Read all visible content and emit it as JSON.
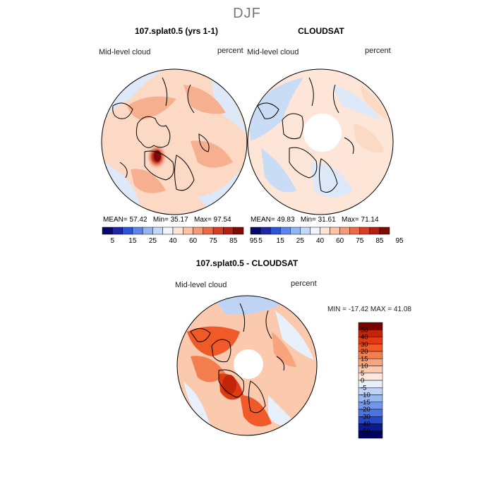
{
  "page": {
    "title": "DJF"
  },
  "colors": {
    "ocean_blue": "#c9dcf5",
    "light_blue": "#dde9f8",
    "light_orange": "#fbd9c4",
    "orange": "#f6b08f",
    "red": "#e2542e",
    "dark_red": "#b2182b",
    "coast": "#000000"
  },
  "chart_data": [
    {
      "type": "heatmap",
      "title": "107.splat0.5 (yrs 1-1)",
      "variable": "Mid-level cloud",
      "units": "percent",
      "stats": {
        "mean_label": "MEAN=",
        "mean": "57.42",
        "min_label": "Min=",
        "min": "35.17",
        "max_label": "Max=",
        "max": "97.54"
      },
      "colorbar": {
        "tick_labels": [
          "5",
          "15",
          "25",
          "40",
          "60",
          "75",
          "85",
          "95"
        ],
        "colors": [
          "#08086b",
          "#1f27a6",
          "#2f56d6",
          "#5e85ec",
          "#93b6f3",
          "#c4d9f8",
          "#eef3fc",
          "#fde6d7",
          "#fbc4a6",
          "#f69b77",
          "#ec6a48",
          "#d93e22",
          "#b31f10",
          "#800b06"
        ]
      }
    },
    {
      "type": "heatmap",
      "title": "CLOUDSAT",
      "variable": "Mid-level cloud",
      "units": "percent",
      "stats": {
        "mean_label": "MEAN=",
        "mean": "49.83",
        "min_label": "Min=",
        "min": "31.61",
        "max_label": "Max=",
        "max": "71.14"
      },
      "colorbar": {
        "tick_labels": [
          "5",
          "15",
          "25",
          "40",
          "60",
          "75",
          "85",
          "95"
        ],
        "colors": [
          "#08086b",
          "#1f27a6",
          "#2f56d6",
          "#5e85ec",
          "#93b6f3",
          "#c4d9f8",
          "#eef3fc",
          "#fde6d7",
          "#fbc4a6",
          "#f69b77",
          "#ec6a48",
          "#d93e22",
          "#b31f10",
          "#800b06"
        ]
      }
    },
    {
      "type": "heatmap",
      "title": "107.splat0.5 - CLOUDSAT",
      "variable": "Mid-level cloud",
      "units": "percent",
      "stats_line": "MIN = -17.42 MAX =  41.08",
      "colorbar": {
        "tick_labels": [
          "50",
          "40",
          "30",
          "20",
          "15",
          "10",
          "5",
          "0",
          "-5",
          "-10",
          "-15",
          "-20",
          "-30",
          "-40",
          "-50"
        ],
        "colors": [
          "#7a0000",
          "#c2250a",
          "#e03b14",
          "#ef5a28",
          "#f47f4e",
          "#f8a47c",
          "#fbc9ad",
          "#fde9de",
          "#e8f0fb",
          "#bfd4f5",
          "#98b8ef",
          "#7397e8",
          "#4c74de",
          "#2448c9",
          "#0a1a8f",
          "#000060"
        ]
      }
    }
  ]
}
